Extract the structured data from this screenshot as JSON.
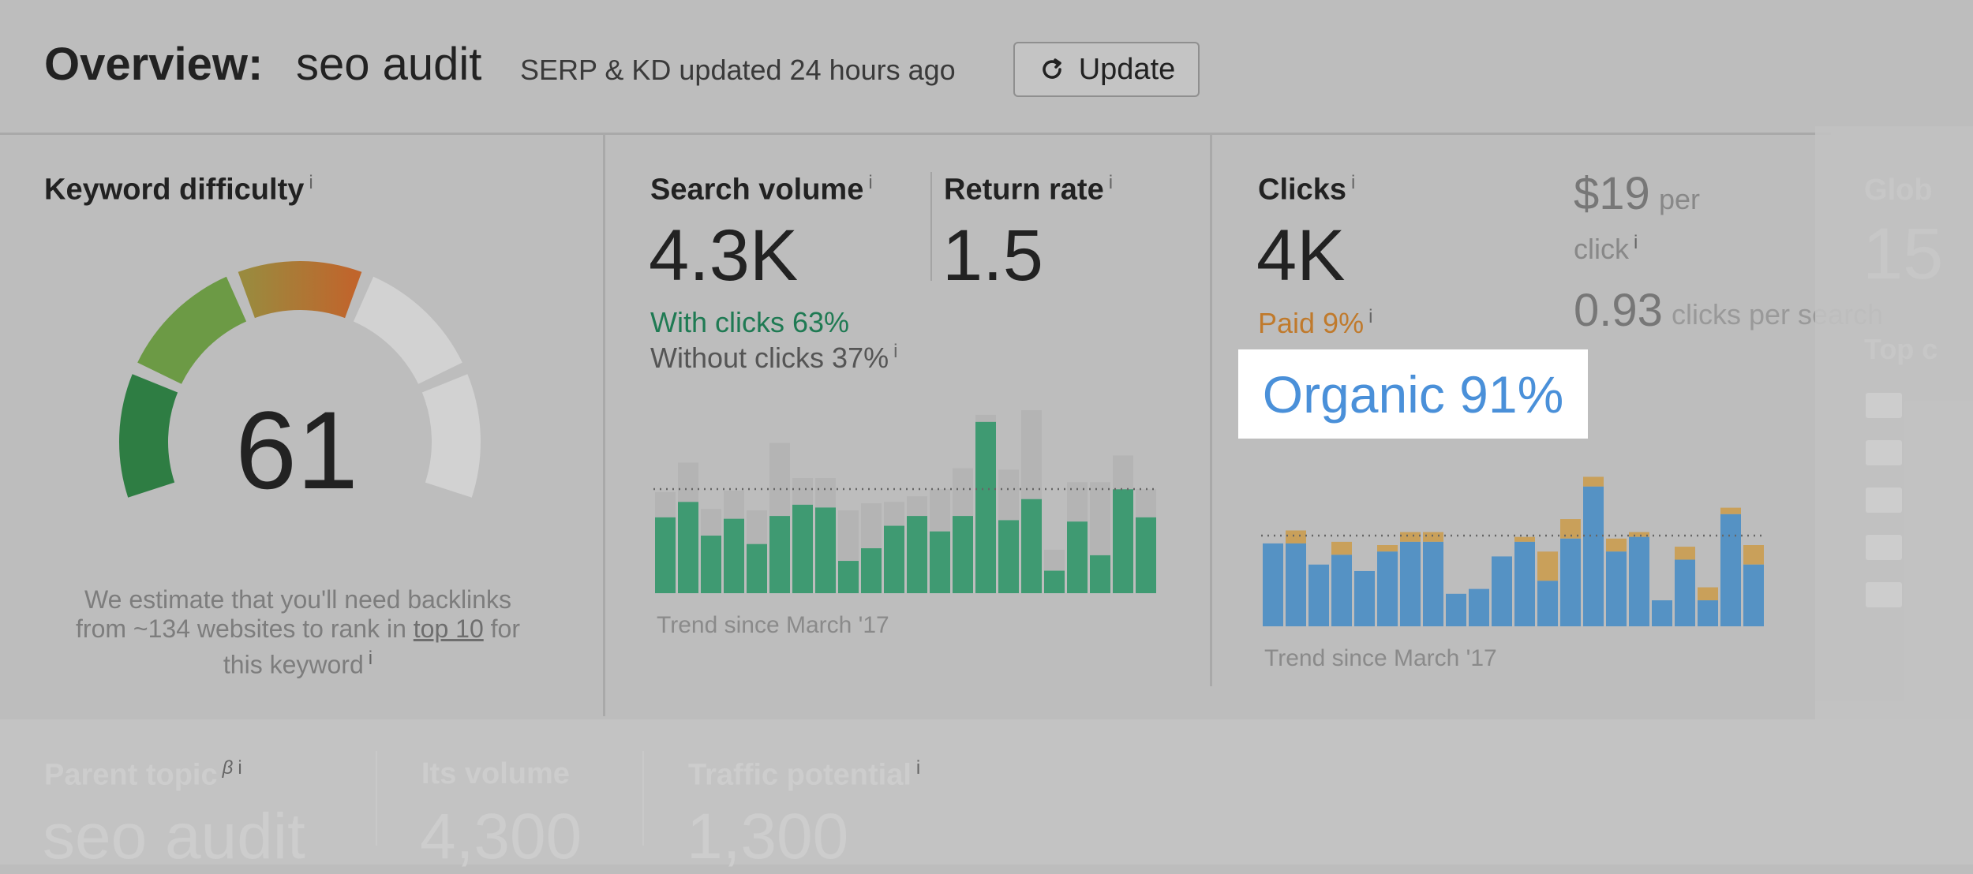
{
  "header": {
    "title": "Overview:",
    "keyword": "seo audit",
    "updated_text": "SERP & KD updated 24 hours ago",
    "update_button": "Update"
  },
  "keyword_difficulty": {
    "label": "Keyword difficulty",
    "value": "61",
    "score": 61,
    "note_line1": "We estimate that you'll need backlinks",
    "note_line2_prefix": "from ~134 websites to rank in",
    "note_link": "top 10",
    "note_line2_suffix": "for",
    "note_line3": "this keyword",
    "info": "i"
  },
  "search_volume": {
    "label": "Search volume",
    "value": "4.3K",
    "return_rate_label": "Return rate",
    "return_rate_value": "1.5",
    "with_clicks": "With clicks 63%",
    "without_clicks": "Without clicks 37%",
    "trend_label": "Trend since March '17",
    "info": "i",
    "bars": [
      {
        "green": 0.54,
        "total": 0.72
      },
      {
        "green": 0.65,
        "total": 0.93
      },
      {
        "green": 0.41,
        "total": 0.6
      },
      {
        "green": 0.53,
        "total": 0.73
      },
      {
        "green": 0.35,
        "total": 0.59
      },
      {
        "green": 0.55,
        "total": 1.07
      },
      {
        "green": 0.63,
        "total": 0.82
      },
      {
        "green": 0.61,
        "total": 0.82
      },
      {
        "green": 0.23,
        "total": 0.59
      },
      {
        "green": 0.32,
        "total": 0.64
      },
      {
        "green": 0.48,
        "total": 0.65
      },
      {
        "green": 0.55,
        "total": 0.69
      },
      {
        "green": 0.44,
        "total": 0.74
      },
      {
        "green": 0.55,
        "total": 0.89
      },
      {
        "green": 1.22,
        "total": 1.27
      },
      {
        "green": 0.52,
        "total": 0.88
      },
      {
        "green": 0.67,
        "total": 1.4
      },
      {
        "green": 0.16,
        "total": 0.31
      },
      {
        "green": 0.51,
        "total": 0.79
      },
      {
        "green": 0.27,
        "total": 0.79
      },
      {
        "green": 0.74,
        "total": 0.98
      },
      {
        "green": 0.54,
        "total": 0.74
      }
    ]
  },
  "clicks": {
    "label": "Clicks",
    "value": "4K",
    "paid": "Paid 9%",
    "organic": "Organic 91%",
    "cpc_value": "$19",
    "cpc_unit": "per",
    "cpc_click": "click",
    "cps_value": "0.93",
    "cps_unit": "clicks per search",
    "trend_label": "Trend since March '17",
    "info": "i",
    "bars": [
      {
        "blue": 0.51,
        "paid": 0
      },
      {
        "blue": 0.51,
        "paid": 0.08
      },
      {
        "blue": 0.38,
        "paid": 0
      },
      {
        "blue": 0.44,
        "paid": 0.08
      },
      {
        "blue": 0.34,
        "paid": 0
      },
      {
        "blue": 0.46,
        "paid": 0.04
      },
      {
        "blue": 0.52,
        "paid": 0.06
      },
      {
        "blue": 0.52,
        "paid": 0.06
      },
      {
        "blue": 0.2,
        "paid": 0
      },
      {
        "blue": 0.23,
        "paid": 0
      },
      {
        "blue": 0.43,
        "paid": 0
      },
      {
        "blue": 0.52,
        "paid": 0.03
      },
      {
        "blue": 0.28,
        "paid": 0.18
      },
      {
        "blue": 0.54,
        "paid": 0.12
      },
      {
        "blue": 0.86,
        "paid": 0.06
      },
      {
        "blue": 0.46,
        "paid": 0.08
      },
      {
        "blue": 0.55,
        "paid": 0.03
      },
      {
        "blue": 0.16,
        "paid": 0
      },
      {
        "blue": 0.41,
        "paid": 0.08
      },
      {
        "blue": 0.16,
        "paid": 0.08
      },
      {
        "blue": 0.69,
        "paid": 0.04
      },
      {
        "blue": 0.38,
        "paid": 0.12
      }
    ]
  },
  "faded_right": {
    "label": "Glob",
    "value": "15",
    "sub": "Top c"
  },
  "bottom": {
    "parent_topic_label": "Parent topic",
    "parent_topic_beta": "β",
    "parent_topic_value": "seo audit",
    "its_volume_label": "Its volume",
    "its_volume_value": "4,300",
    "traffic_potential_label": "Traffic potential",
    "traffic_potential_value": "1,300",
    "info": "i"
  },
  "colors": {
    "background": "#bdbdbd",
    "green_bar": "#3f9a72",
    "grey_bar": "#b4b4b4",
    "blue_bar": "#5592c4",
    "paid_bar": "#c9a05a",
    "organic_text": "#4a90d9",
    "paid_text": "#c07a2c",
    "with_clicks_text": "#1f7a53"
  }
}
